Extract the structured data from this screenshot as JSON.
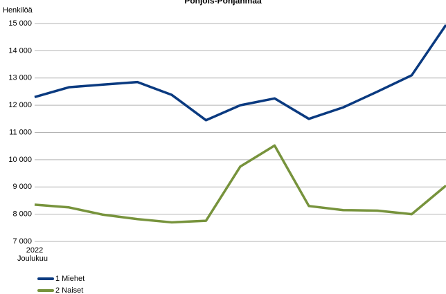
{
  "chart_data": {
    "type": "line",
    "title": "Pohjois-Pohjanmaa",
    "y_label": "Henkilöä",
    "year": "2022",
    "categories": [
      "Joulukuu",
      null,
      null,
      null,
      null,
      null,
      null,
      null,
      null,
      null,
      null,
      null,
      null
    ],
    "series": [
      {
        "name": "1 Miehet",
        "color": "#0a3a80",
        "values": [
          12300,
          12660,
          12760,
          12850,
          12380,
          11450,
          12000,
          12250,
          11500,
          11920,
          12500,
          13100,
          14950
        ]
      },
      {
        "name": "2 Naiset",
        "color": "#77933c",
        "values": [
          8350,
          8250,
          7980,
          7820,
          7700,
          7760,
          9750,
          10520,
          8300,
          8150,
          8130,
          8000,
          9050
        ]
      }
    ],
    "ylim": [
      7000,
      15000
    ],
    "yticks": [
      {
        "value": 7000,
        "label": "7 000"
      },
      {
        "value": 8000,
        "label": "8 000"
      },
      {
        "value": 9000,
        "label": "9 000"
      },
      {
        "value": 10000,
        "label": "10 000"
      },
      {
        "value": 11000,
        "label": "11 000"
      },
      {
        "value": 12000,
        "label": "12 000"
      },
      {
        "value": 13000,
        "label": "13 000"
      },
      {
        "value": 14000,
        "label": "14 000"
      },
      {
        "value": 15000,
        "label": "15 000"
      }
    ],
    "grid": true,
    "legend": "bottom-left"
  }
}
